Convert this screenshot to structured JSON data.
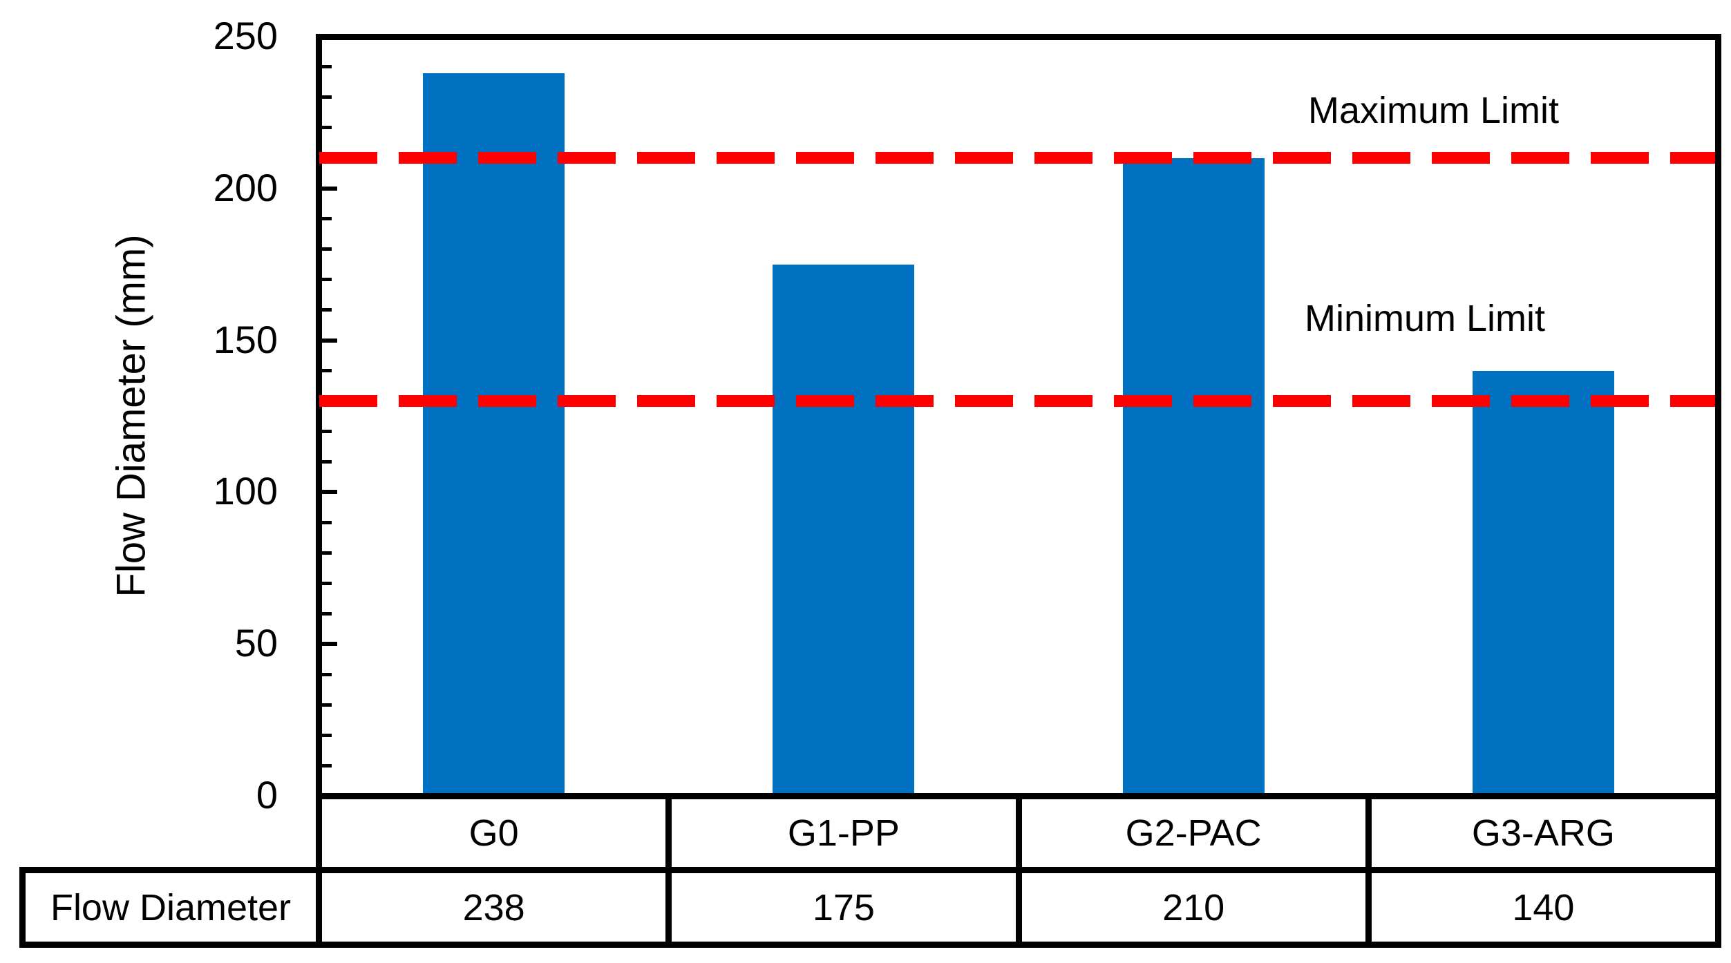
{
  "chart_data": {
    "type": "bar",
    "title": "",
    "categories": [
      "G0",
      "G1-PP",
      "G2-PAC",
      "G3-ARG"
    ],
    "values": [
      238,
      175,
      210,
      140
    ],
    "series_name": "Flow Diameter",
    "ylabel": "Flow Diameter (mm)",
    "xlabel": "",
    "ylim": [
      0,
      250
    ],
    "yticks": [
      0,
      50,
      100,
      150,
      200,
      250
    ],
    "minor_tick_step": 10,
    "major_tick_step": 50,
    "grid": false,
    "legend": false,
    "bar_color": "#0070C0",
    "annotation_color": "#FF0000",
    "annotations": [
      {
        "label": "Maximum Limit",
        "value": 210,
        "color": "#FF0000",
        "style": "dashed"
      },
      {
        "label": "Minimum Limit",
        "value": 130,
        "color": "#FF0000",
        "style": "dashed"
      }
    ],
    "data_table": {
      "row_label": "Flow Diameter",
      "columns": [
        "G0",
        "G1-PP",
        "G2-PAC",
        "G3-ARG"
      ],
      "values": [
        "238",
        "175",
        "210",
        "140"
      ]
    }
  }
}
